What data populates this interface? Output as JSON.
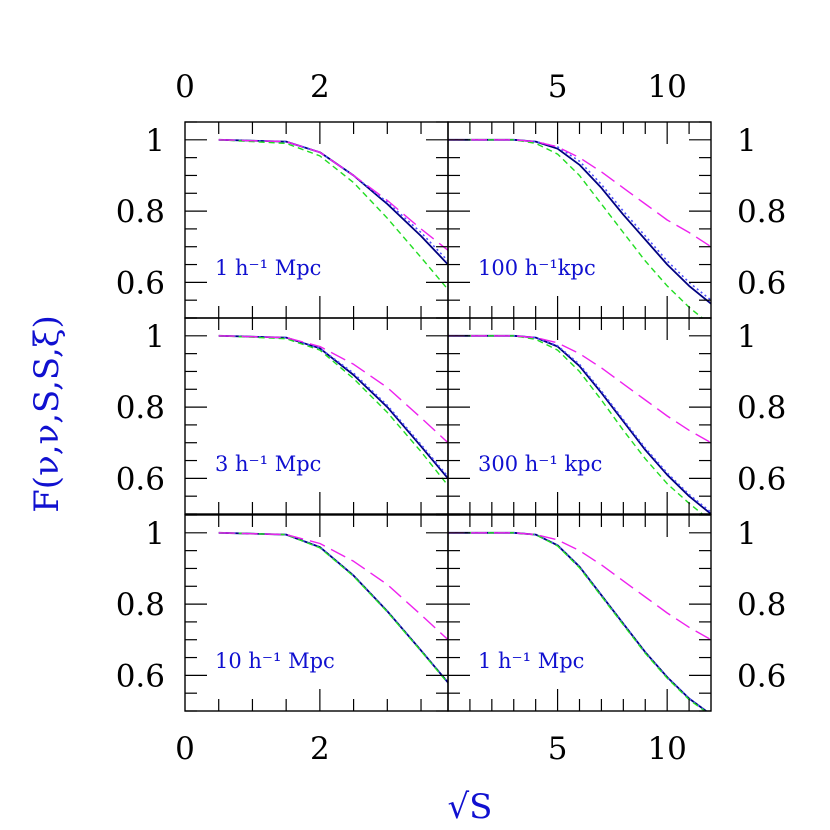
{
  "chart_data": {
    "type": "line",
    "ylabel": "F(ν,ν,S,S,ξ)",
    "xlabel": "√S",
    "grid": false,
    "layout": {
      "rows": 3,
      "columns": 2
    },
    "columns": [
      {
        "xlim": [
          0,
          3.9
        ],
        "ticks": [
          {
            "v": 0,
            "label": "0"
          },
          {
            "v": 2,
            "label": "2"
          }
        ]
      },
      {
        "xlim": [
          0,
          12
        ],
        "ticks": [
          {
            "v": 5,
            "label": "5"
          },
          {
            "v": 10,
            "label": "10"
          }
        ]
      }
    ],
    "ylim": [
      0.5,
      1.05
    ],
    "yticks": [
      {
        "v": 1,
        "label": "1"
      },
      {
        "v": 0.8,
        "label": "0.8"
      },
      {
        "v": 0.6,
        "label": "0.6"
      }
    ],
    "colors": {
      "solid": "#000080",
      "dotted": "#5050ff",
      "green": "#22dd22",
      "magenta": "#ee22ee"
    },
    "panels": [
      {
        "label": "1 h⁻¹ Mpc",
        "series": [
          {
            "style": "solid",
            "x": [
              0.5,
              1.5,
              2.0,
              2.5,
              3.0,
              3.5,
              3.9
            ],
            "y": [
              1.0,
              0.995,
              0.965,
              0.9,
              0.82,
              0.73,
              0.65
            ]
          },
          {
            "style": "dotted",
            "x": [
              0.5,
              1.5,
              2.0,
              2.5,
              3.0,
              3.5,
              3.9
            ],
            "y": [
              1.0,
              0.995,
              0.965,
              0.9,
              0.825,
              0.74,
              0.66
            ]
          },
          {
            "style": "green",
            "x": [
              0.5,
              1.5,
              2.0,
              2.5,
              3.0,
              3.5,
              3.9
            ],
            "y": [
              1.0,
              0.99,
              0.955,
              0.88,
              0.78,
              0.67,
              0.58
            ]
          },
          {
            "style": "magenta",
            "x": [
              0.5,
              1.5,
              2.0,
              2.5,
              3.0,
              3.5,
              3.9
            ],
            "y": [
              1.0,
              0.995,
              0.965,
              0.9,
              0.83,
              0.75,
              0.69
            ]
          }
        ]
      },
      {
        "label": "100 h⁻¹kpc",
        "series": [
          {
            "style": "solid",
            "x": [
              0,
              3,
              4,
              5,
              6,
              7,
              8,
              9,
              10,
              11,
              12
            ],
            "y": [
              1.0,
              1.0,
              0.995,
              0.975,
              0.93,
              0.865,
              0.79,
              0.72,
              0.65,
              0.59,
              0.54
            ]
          },
          {
            "style": "dotted",
            "x": [
              0,
              3,
              4,
              5,
              6,
              7,
              8,
              9,
              10,
              11,
              12
            ],
            "y": [
              1.0,
              1.0,
              0.995,
              0.98,
              0.94,
              0.875,
              0.8,
              0.73,
              0.66,
              0.6,
              0.55
            ]
          },
          {
            "style": "green",
            "x": [
              0,
              3,
              4,
              5,
              6,
              7,
              8,
              9,
              10,
              11,
              12
            ],
            "y": [
              1.0,
              1.0,
              0.99,
              0.96,
              0.9,
              0.82,
              0.74,
              0.66,
              0.59,
              0.53,
              0.48
            ]
          },
          {
            "style": "magenta",
            "x": [
              0,
              3,
              4,
              5,
              6,
              7,
              8,
              9,
              10,
              11,
              12
            ],
            "y": [
              1.0,
              1.0,
              0.995,
              0.98,
              0.95,
              0.91,
              0.865,
              0.82,
              0.775,
              0.74,
              0.7
            ]
          }
        ]
      },
      {
        "label": "3 h⁻¹ Mpc",
        "series": [
          {
            "style": "solid",
            "x": [
              0.5,
              1.5,
              2.0,
              2.5,
              3.0,
              3.5,
              3.9
            ],
            "y": [
              1.0,
              0.995,
              0.965,
              0.89,
              0.8,
              0.69,
              0.6
            ]
          },
          {
            "style": "dotted",
            "x": [
              0.5,
              1.5,
              2.0,
              2.5,
              3.0,
              3.5,
              3.9
            ],
            "y": [
              1.0,
              0.995,
              0.965,
              0.895,
              0.805,
              0.695,
              0.605
            ]
          },
          {
            "style": "green",
            "x": [
              0.5,
              1.5,
              2.0,
              2.5,
              3.0,
              3.5,
              3.9
            ],
            "y": [
              1.0,
              0.992,
              0.96,
              0.88,
              0.785,
              0.675,
              0.58
            ]
          },
          {
            "style": "magenta",
            "x": [
              0.5,
              1.5,
              2.0,
              2.5,
              3.0,
              3.5,
              3.9
            ],
            "y": [
              1.0,
              0.995,
              0.97,
              0.92,
              0.855,
              0.77,
              0.7
            ]
          }
        ]
      },
      {
        "label": "300 h⁻¹ kpc",
        "series": [
          {
            "style": "solid",
            "x": [
              0,
              3,
              4,
              5,
              6,
              7,
              8,
              9,
              10,
              11,
              12
            ],
            "y": [
              1.0,
              1.0,
              0.995,
              0.97,
              0.915,
              0.84,
              0.76,
              0.68,
              0.61,
              0.55,
              0.5
            ]
          },
          {
            "style": "dotted",
            "x": [
              0,
              3,
              4,
              5,
              6,
              7,
              8,
              9,
              10,
              11,
              12
            ],
            "y": [
              1.0,
              1.0,
              0.995,
              0.972,
              0.92,
              0.845,
              0.765,
              0.685,
              0.615,
              0.555,
              0.505
            ]
          },
          {
            "style": "green",
            "x": [
              0,
              3,
              4,
              5,
              6,
              7,
              8,
              9,
              10,
              11,
              12
            ],
            "y": [
              1.0,
              1.0,
              0.99,
              0.96,
              0.9,
              0.82,
              0.735,
              0.655,
              0.585,
              0.53,
              0.48
            ]
          },
          {
            "style": "magenta",
            "x": [
              0,
              3,
              4,
              5,
              6,
              7,
              8,
              9,
              10,
              11,
              12
            ],
            "y": [
              1.0,
              1.0,
              0.995,
              0.98,
              0.95,
              0.91,
              0.865,
              0.82,
              0.775,
              0.735,
              0.7
            ]
          }
        ]
      },
      {
        "label": "10 h⁻¹ Mpc",
        "series": [
          {
            "style": "solid",
            "x": [
              0.5,
              1.5,
              2.0,
              2.5,
              3.0,
              3.5,
              3.9
            ],
            "y": [
              1.0,
              0.995,
              0.96,
              0.88,
              0.78,
              0.67,
              0.58
            ]
          },
          {
            "style": "dotted",
            "x": [
              0.5,
              1.5,
              2.0,
              2.5,
              3.0,
              3.5,
              3.9
            ],
            "y": [
              1.0,
              0.995,
              0.96,
              0.88,
              0.78,
              0.67,
              0.58
            ]
          },
          {
            "style": "green",
            "x": [
              0.5,
              1.5,
              2.0,
              2.5,
              3.0,
              3.5,
              3.9
            ],
            "y": [
              1.0,
              0.995,
              0.958,
              0.878,
              0.778,
              0.668,
              0.578
            ]
          },
          {
            "style": "magenta",
            "x": [
              0.5,
              1.5,
              2.0,
              2.5,
              3.0,
              3.5,
              3.9
            ],
            "y": [
              1.0,
              0.995,
              0.97,
              0.92,
              0.855,
              0.77,
              0.7
            ]
          }
        ]
      },
      {
        "label": "1 h⁻¹ Mpc",
        "series": [
          {
            "style": "solid",
            "x": [
              0,
              3,
              4,
              5,
              6,
              7,
              8,
              9,
              10,
              11,
              12
            ],
            "y": [
              1.0,
              1.0,
              0.995,
              0.965,
              0.905,
              0.825,
              0.745,
              0.665,
              0.595,
              0.535,
              0.49
            ]
          },
          {
            "style": "dotted",
            "x": [
              0,
              3,
              4,
              5,
              6,
              7,
              8,
              9,
              10,
              11,
              12
            ],
            "y": [
              1.0,
              1.0,
              0.995,
              0.965,
              0.905,
              0.825,
              0.745,
              0.665,
              0.595,
              0.535,
              0.49
            ]
          },
          {
            "style": "green",
            "x": [
              0,
              3,
              4,
              5,
              6,
              7,
              8,
              9,
              10,
              11,
              12
            ],
            "y": [
              1.0,
              1.0,
              0.995,
              0.963,
              0.902,
              0.822,
              0.742,
              0.662,
              0.592,
              0.532,
              0.487
            ]
          },
          {
            "style": "magenta",
            "x": [
              0,
              3,
              4,
              5,
              6,
              7,
              8,
              9,
              10,
              11,
              12
            ],
            "y": [
              1.0,
              1.0,
              0.995,
              0.98,
              0.95,
              0.91,
              0.865,
              0.82,
              0.775,
              0.735,
              0.7
            ]
          }
        ]
      }
    ]
  }
}
